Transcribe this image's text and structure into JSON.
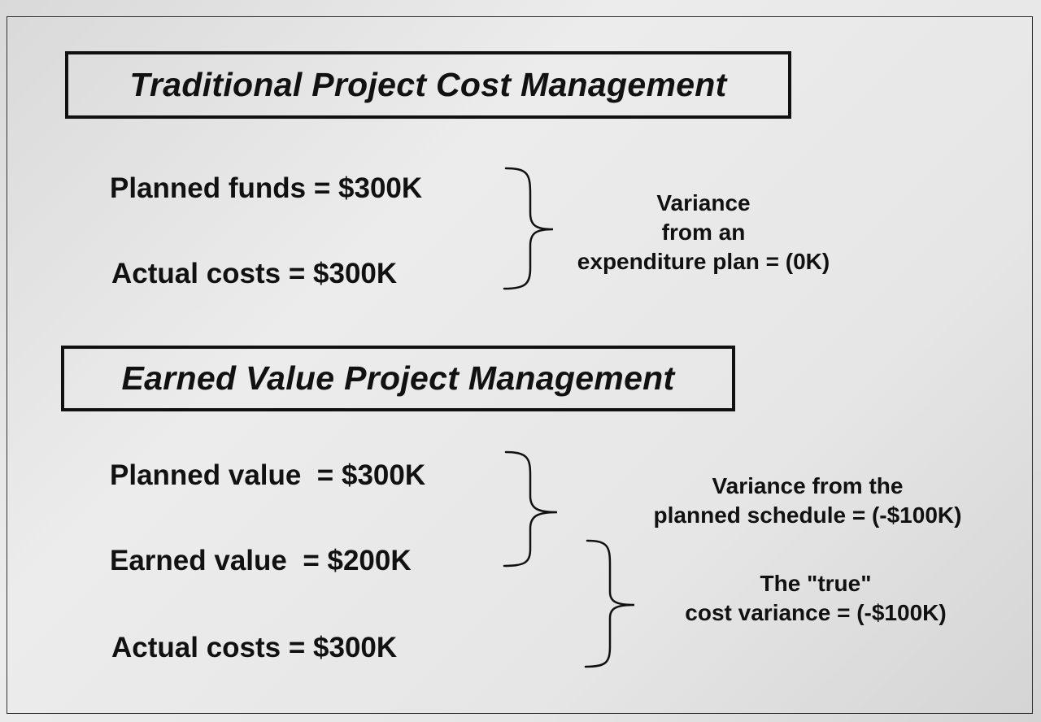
{
  "traditional": {
    "title": "Traditional Project Cost Management",
    "planned_funds": "Planned funds = $300K",
    "actual_costs": "Actual costs = $300K",
    "variance_lines": [
      "Variance",
      "from an",
      "expenditure plan = (0K)"
    ]
  },
  "earned_value": {
    "title": "Earned Value Project Management",
    "planned_value": "Planned value  = $300K",
    "earned_value": "Earned value  = $200K",
    "actual_costs": "Actual costs = $300K",
    "schedule_variance_lines": [
      "Variance from the",
      "planned schedule = (-$100K)"
    ],
    "cost_variance_lines": [
      "The \"true\"",
      "cost variance = (-$100K)"
    ]
  }
}
